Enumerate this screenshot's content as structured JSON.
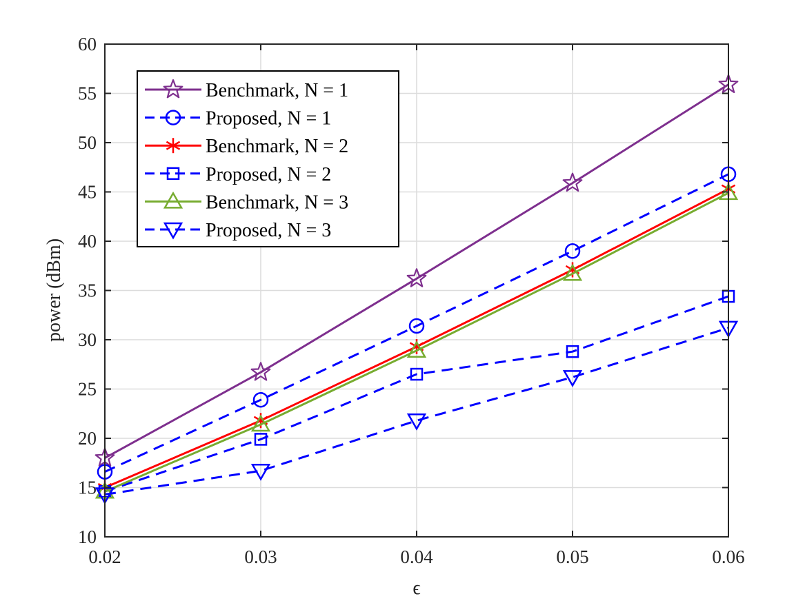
{
  "chart_data": {
    "type": "line",
    "title": "",
    "xlabel": "ϵ",
    "ylabel": "power (dBm)",
    "x": [
      0.02,
      0.03,
      0.04,
      0.05,
      0.06
    ],
    "x_tick_labels": [
      "0.02",
      "0.03",
      "0.04",
      "0.05",
      "0.06"
    ],
    "y_tick_labels": [
      "10",
      "15",
      "20",
      "25",
      "30",
      "35",
      "40",
      "45",
      "50",
      "55",
      "60"
    ],
    "xlim": [
      0.02,
      0.06
    ],
    "ylim": [
      10,
      60
    ],
    "grid": true,
    "legend_position": "top-left",
    "series": [
      {
        "name": "Benchmark, N = 1",
        "values": [
          18.0,
          26.7,
          36.2,
          45.9,
          55.9
        ],
        "color": "#7E2F8E",
        "line": "solid",
        "marker": "star"
      },
      {
        "name": "Proposed, N = 1",
        "values": [
          16.6,
          23.9,
          31.4,
          39.0,
          46.8
        ],
        "color": "#0000FF",
        "line": "dashed",
        "marker": "circle"
      },
      {
        "name": "Benchmark, N = 2",
        "values": [
          15.0,
          21.8,
          29.3,
          37.1,
          45.3
        ],
        "color": "#FF0000",
        "line": "solid",
        "marker": "asterisk"
      },
      {
        "name": "Proposed, N = 2",
        "values": [
          14.6,
          19.9,
          26.5,
          28.8,
          34.4
        ],
        "color": "#0000FF",
        "line": "dashed",
        "marker": "square"
      },
      {
        "name": "Benchmark, N = 3",
        "values": [
          14.6,
          21.4,
          28.9,
          36.7,
          44.9
        ],
        "color": "#77AC30",
        "line": "solid",
        "marker": "triangle-up"
      },
      {
        "name": "Proposed, N = 3",
        "values": [
          14.3,
          16.7,
          21.8,
          26.2,
          31.2
        ],
        "color": "#0000FF",
        "line": "dashed",
        "marker": "triangle-down"
      }
    ]
  }
}
